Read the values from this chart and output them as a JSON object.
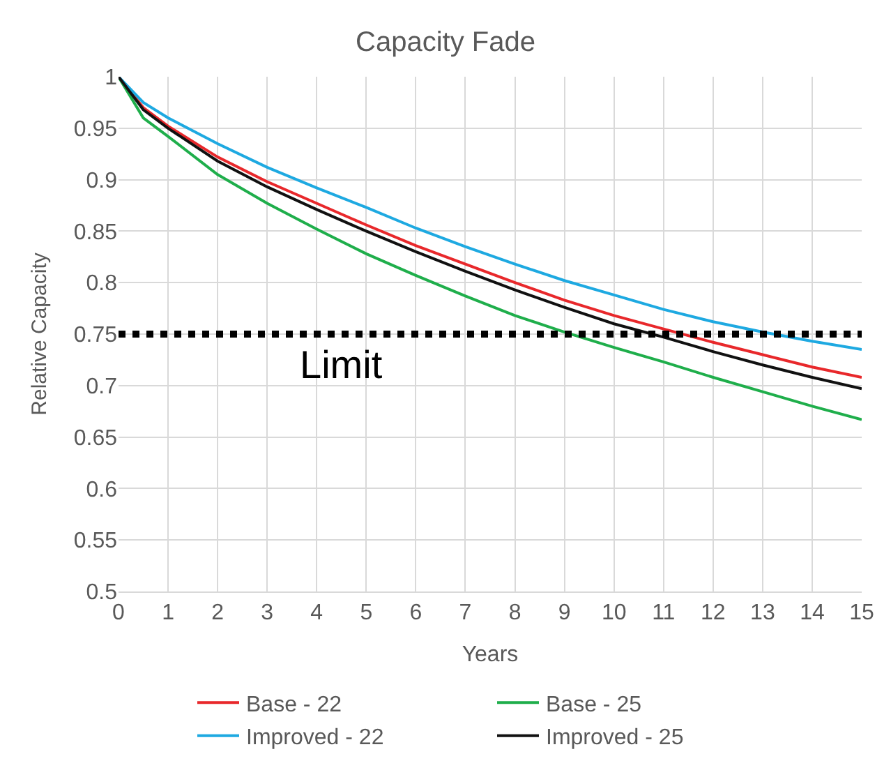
{
  "chart_data": {
    "type": "line",
    "title": "Capacity Fade",
    "xlabel": "Years",
    "ylabel": "Relative Capacity",
    "x": [
      0,
      0.5,
      1,
      2,
      3,
      4,
      5,
      6,
      7,
      8,
      9,
      10,
      11,
      12,
      13,
      14,
      15
    ],
    "series": [
      {
        "name": "Base - 22",
        "color": "#e8282b",
        "values": [
          1,
          0.97,
          0.952,
          0.922,
          0.898,
          0.877,
          0.856,
          0.836,
          0.818,
          0.8,
          0.783,
          0.768,
          0.755,
          0.742,
          0.73,
          0.718,
          0.708
        ]
      },
      {
        "name": "Base - 25",
        "color": "#1fae4b",
        "values": [
          1,
          0.96,
          0.942,
          0.905,
          0.877,
          0.852,
          0.828,
          0.807,
          0.787,
          0.768,
          0.752,
          0.737,
          0.723,
          0.708,
          0.694,
          0.68,
          0.667
        ]
      },
      {
        "name": "Improved - 22",
        "color": "#1ea9e1",
        "values": [
          1,
          0.975,
          0.96,
          0.935,
          0.912,
          0.892,
          0.873,
          0.853,
          0.835,
          0.818,
          0.802,
          0.788,
          0.774,
          0.762,
          0.752,
          0.743,
          0.735
        ]
      },
      {
        "name": "Improved - 25",
        "color": "#111111",
        "values": [
          1,
          0.968,
          0.95,
          0.918,
          0.893,
          0.871,
          0.85,
          0.83,
          0.811,
          0.793,
          0.776,
          0.76,
          0.747,
          0.733,
          0.72,
          0.708,
          0.697
        ]
      }
    ],
    "xlim": [
      0,
      15
    ],
    "xticks": [
      0,
      1,
      2,
      3,
      4,
      5,
      6,
      7,
      8,
      9,
      10,
      11,
      12,
      13,
      14,
      15
    ],
    "ylim": [
      0.5,
      1
    ],
    "yticks": [
      0.5,
      0.55,
      0.6,
      0.65,
      0.7,
      0.75,
      0.8,
      0.85,
      0.9,
      0.95,
      1
    ],
    "ref_lines": [
      {
        "axis": "y",
        "value": 0.75,
        "label": "Limit",
        "color": "#000000",
        "line_style": "dotted"
      }
    ],
    "grid": true,
    "legend": "bottom",
    "marker": "none",
    "line_style": "solid"
  }
}
